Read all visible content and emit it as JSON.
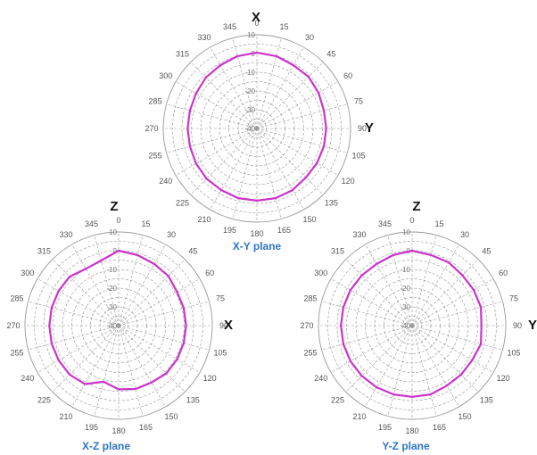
{
  "chart_data": [
    {
      "type": "polar-line",
      "title": "X-Y plane",
      "axis_top": "X",
      "axis_right": "Y",
      "angle_labels": [
        "0",
        "15",
        "30",
        "45",
        "60",
        "75",
        "90",
        "105",
        "120",
        "135",
        "150",
        "165",
        "180",
        "195",
        "210",
        "225",
        "240",
        "255",
        "270",
        "285",
        "300",
        "315",
        "330",
        "345"
      ],
      "radial_labels": [
        "10",
        "0",
        "-10",
        "-20",
        "-30",
        "-40"
      ],
      "rlim": [
        -40,
        10
      ],
      "series_color": "#cc33cc",
      "series": [
        {
          "angles": [
            0,
            15,
            30,
            45,
            60,
            75,
            90,
            105,
            120,
            135,
            150,
            165,
            180,
            195,
            210,
            225,
            240,
            255,
            270,
            285,
            300,
            315,
            330,
            345
          ],
          "values": [
            0.5,
            0,
            -1,
            -1,
            -2,
            -3,
            -3,
            -3,
            -3,
            -3,
            -2,
            -1.5,
            -1.5,
            -1.5,
            -2,
            -2,
            -2.5,
            -3,
            -3,
            -3,
            -2.5,
            -1.5,
            -1,
            0
          ]
        }
      ]
    },
    {
      "type": "polar-line",
      "title": "X-Z plane",
      "axis_top": "Z",
      "axis_right": "X",
      "angle_labels": [
        "0",
        "15",
        "30",
        "45",
        "60",
        "75",
        "90",
        "105",
        "120",
        "135",
        "150",
        "165",
        "180",
        "195",
        "210",
        "225",
        "240",
        "255",
        "270",
        "285",
        "300",
        "315",
        "330",
        "345"
      ],
      "radial_labels": [
        "10",
        "0",
        "-10",
        "-20",
        "-30",
        "-40"
      ],
      "rlim": [
        -40,
        10
      ],
      "series_color": "#cc33cc",
      "series": [
        {
          "angles": [
            0,
            15,
            30,
            45,
            60,
            75,
            90,
            105,
            120,
            135,
            150,
            165,
            180,
            195,
            210,
            225,
            240,
            255,
            270,
            285,
            300,
            315,
            330,
            345
          ],
          "values": [
            0,
            -1,
            -2,
            -2.5,
            -4,
            -4,
            -4,
            -4,
            -4,
            -4,
            -5,
            -5,
            -6,
            -9,
            -4,
            -3,
            -3,
            -3,
            -3,
            -3,
            -3,
            -3,
            -5,
            -4
          ]
        }
      ]
    },
    {
      "type": "polar-line",
      "title": "Y-Z plane",
      "axis_top": "Z",
      "axis_right": "Y",
      "angle_labels": [
        "0",
        "15",
        "30",
        "45",
        "60",
        "75",
        "90",
        "105",
        "120",
        "135",
        "150",
        "165",
        "180",
        "195",
        "210",
        "225",
        "240",
        "255",
        "270",
        "285",
        "300",
        "315",
        "330",
        "345"
      ],
      "radial_labels": [
        "10",
        "0",
        "-10",
        "-20",
        "-30",
        "-40"
      ],
      "rlim": [
        -40,
        10
      ],
      "series_color": "#cc33cc",
      "series": [
        {
          "angles": [
            0,
            15,
            30,
            45,
            60,
            75,
            90,
            105,
            120,
            135,
            150,
            165,
            180,
            195,
            210,
            225,
            240,
            255,
            270,
            285,
            300,
            315,
            330,
            345
          ],
          "values": [
            0,
            -1,
            -1,
            -2,
            -2,
            -2,
            -3,
            -2,
            -3,
            -3,
            -3,
            -2,
            -2,
            -2,
            -2,
            -2,
            -2,
            -2,
            -2,
            -2,
            -2,
            -2,
            -2,
            -1
          ]
        }
      ]
    }
  ]
}
